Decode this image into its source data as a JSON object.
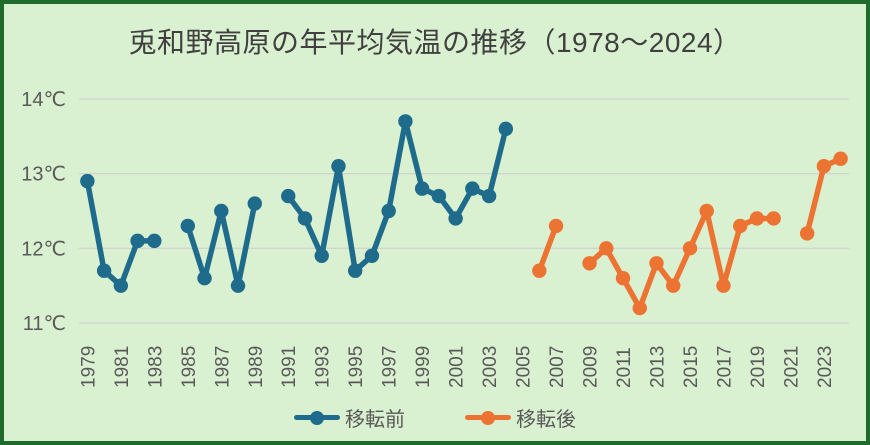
{
  "theme": {
    "background": "#d9f1d0",
    "border_color": "#1e6b2b",
    "title_color": "#404040",
    "label_color": "#595959",
    "gridline_color": "#d1d5ce"
  },
  "chart_data": {
    "type": "line",
    "title": "兎和野高原の年平均気温の推移（1978～2024）",
    "xlabel": "",
    "ylabel": "",
    "ylim": [
      11,
      14
    ],
    "yticks": [
      14,
      13,
      12,
      11
    ],
    "ytick_labels": [
      "14℃",
      "13℃",
      "12℃",
      "11℃"
    ],
    "x": [
      1979,
      1980,
      1981,
      1982,
      1983,
      1984,
      1985,
      1986,
      1987,
      1988,
      1989,
      1990,
      1991,
      1992,
      1993,
      1994,
      1995,
      1996,
      1997,
      1998,
      1999,
      2000,
      2001,
      2002,
      2003,
      2004,
      2005,
      2006,
      2007,
      2008,
      2009,
      2010,
      2011,
      2012,
      2013,
      2014,
      2015,
      2016,
      2017,
      2018,
      2019,
      2020,
      2021,
      2022,
      2023,
      2024
    ],
    "xtick_labels": [
      "1979",
      "1981",
      "1983",
      "1985",
      "1987",
      "1989",
      "1991",
      "1993",
      "1995",
      "1997",
      "1999",
      "2001",
      "2003",
      "2005",
      "2007",
      "2009",
      "2011",
      "2013",
      "2015",
      "2017",
      "2019",
      "2021",
      "2023"
    ],
    "grid": true,
    "legend_position": "bottom",
    "series": [
      {
        "name": "移転前",
        "color": "#1e6b8c",
        "values": [
          12.9,
          11.7,
          11.5,
          12.1,
          12.1,
          null,
          12.3,
          11.6,
          12.5,
          11.5,
          12.6,
          null,
          12.7,
          12.4,
          11.9,
          13.1,
          11.7,
          11.9,
          12.5,
          13.7,
          12.8,
          12.7,
          12.4,
          12.8,
          12.7,
          13.6,
          null,
          null,
          null,
          null,
          null,
          null,
          null,
          null,
          null,
          null,
          null,
          null,
          null,
          null,
          null,
          null,
          null,
          null,
          null,
          null
        ]
      },
      {
        "name": "移転後",
        "color": "#ec7331",
        "values": [
          null,
          null,
          null,
          null,
          null,
          null,
          null,
          null,
          null,
          null,
          null,
          null,
          null,
          null,
          null,
          null,
          null,
          null,
          null,
          null,
          null,
          null,
          null,
          null,
          null,
          null,
          null,
          11.7,
          12.3,
          null,
          11.8,
          12.0,
          11.6,
          11.2,
          11.8,
          11.5,
          12.0,
          12.5,
          11.5,
          12.3,
          12.4,
          12.4,
          null,
          12.2,
          13.1,
          13.2
        ]
      }
    ]
  }
}
